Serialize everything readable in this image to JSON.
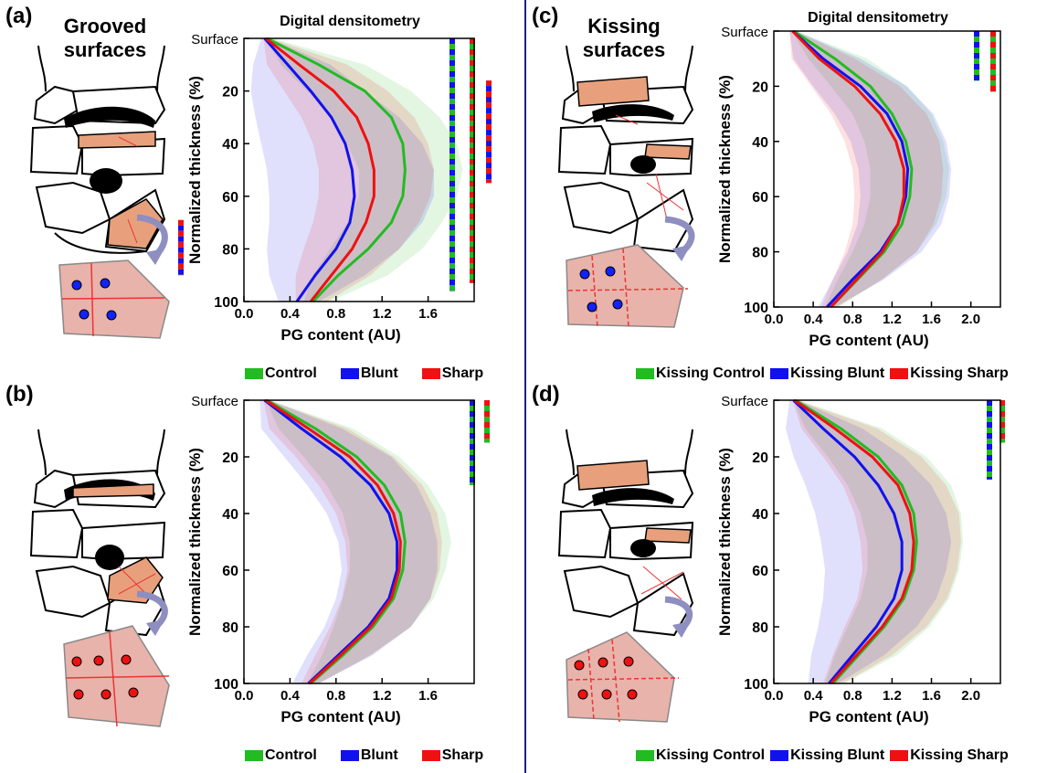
{
  "panels": {
    "a": {
      "letter": "(a)",
      "group_title": "Grooved surfaces"
    },
    "b": {
      "letter": "(b)"
    },
    "c": {
      "letter": "(c)",
      "group_title": "Kissing surfaces"
    },
    "d": {
      "letter": "(d)"
    }
  },
  "legend_left": [
    {
      "label": "Control",
      "color": "#22bb22"
    },
    {
      "label": "Blunt",
      "color": "#1111ee"
    },
    {
      "label": "Sharp",
      "color": "#ee1111"
    }
  ],
  "legend_right": [
    {
      "label": "Kissing Control",
      "color": "#22bb22"
    },
    {
      "label": "Kissing Blunt",
      "color": "#1111ee"
    },
    {
      "label": "Kissing Sharp",
      "color": "#ee1111"
    }
  ],
  "colors": {
    "control": "#22bb22",
    "blunt": "#1111ee",
    "sharp": "#ee1111",
    "divider": "#1a237e"
  },
  "chart_data": [
    {
      "panel": "a",
      "type": "line",
      "title": "Digital densitometry",
      "xlabel": "PG content (AU)",
      "ylabel": "Normalized thickness (%)",
      "xlim": [
        0,
        2.0
      ],
      "ylim": [
        0,
        100
      ],
      "y_inverted": true,
      "xticks": [
        0.0,
        0.4,
        0.8,
        1.2,
        1.6
      ],
      "xtick_labels": [
        "0.0",
        "0.4",
        "0.8",
        "1.2",
        "1.6"
      ],
      "yticks": [
        0,
        20,
        40,
        60,
        80,
        100
      ],
      "ytick_labels": [
        "Surface",
        "20",
        "40",
        "60",
        "80",
        "100"
      ],
      "y": [
        0,
        10,
        20,
        30,
        40,
        50,
        60,
        70,
        80,
        90,
        100
      ],
      "series": [
        {
          "name": "Control",
          "color": "#22bb22",
          "x": [
            0.2,
            0.65,
            1.05,
            1.28,
            1.38,
            1.4,
            1.38,
            1.28,
            1.08,
            0.82,
            0.6
          ],
          "lower": [
            0.2,
            0.32,
            0.55,
            0.75,
            0.9,
            1.0,
            1.0,
            0.9,
            0.75,
            0.6,
            0.52
          ],
          "upper": [
            0.25,
            1.05,
            1.45,
            1.7,
            1.85,
            1.9,
            1.85,
            1.72,
            1.55,
            1.25,
            0.75
          ]
        },
        {
          "name": "Blunt",
          "color": "#1111ee",
          "x": [
            0.18,
            0.38,
            0.58,
            0.76,
            0.88,
            0.94,
            0.96,
            0.92,
            0.8,
            0.62,
            0.46
          ],
          "lower": [
            0.15,
            0.08,
            0.06,
            0.1,
            0.15,
            0.2,
            0.22,
            0.22,
            0.2,
            0.22,
            0.3
          ],
          "upper": [
            0.22,
            0.75,
            1.05,
            1.35,
            1.55,
            1.65,
            1.65,
            1.55,
            1.35,
            1.05,
            0.65
          ]
        },
        {
          "name": "Sharp",
          "color": "#ee1111",
          "x": [
            0.19,
            0.48,
            0.78,
            0.98,
            1.08,
            1.13,
            1.13,
            1.06,
            0.94,
            0.76,
            0.58
          ],
          "lower": [
            0.17,
            0.2,
            0.35,
            0.5,
            0.6,
            0.65,
            0.65,
            0.6,
            0.52,
            0.45,
            0.45
          ],
          "upper": [
            0.23,
            0.9,
            1.25,
            1.48,
            1.6,
            1.65,
            1.62,
            1.52,
            1.35,
            1.1,
            0.72
          ]
        }
      ],
      "significance_bars": [
        {
          "colors": [
            "#1111ee",
            "#22bb22"
          ],
          "y_start": 0,
          "y_end": 96
        },
        {
          "colors": [
            "#ee1111",
            "#22bb22"
          ],
          "y_start": 0,
          "y_end": 93
        },
        {
          "colors": [
            "#ee1111",
            "#1111ee"
          ],
          "y_start": 16,
          "y_end": 55
        },
        {
          "colors": [
            "#ee1111",
            "#1111ee"
          ],
          "y_start": 69,
          "y_end": 90
        }
      ]
    },
    {
      "panel": "b",
      "type": "line",
      "title": "",
      "xlabel": "PG content (AU)",
      "ylabel": "Normalized thickness (%)",
      "xlim": [
        0,
        2.0
      ],
      "ylim": [
        0,
        100
      ],
      "y_inverted": true,
      "xticks": [
        0.0,
        0.4,
        0.8,
        1.2,
        1.6
      ],
      "xtick_labels": [
        "0.0",
        "0.4",
        "0.8",
        "1.2",
        "1.6"
      ],
      "yticks": [
        0,
        20,
        40,
        60,
        80,
        100
      ],
      "ytick_labels": [
        "Surface",
        "20",
        "40",
        "60",
        "80",
        "100"
      ],
      "y": [
        0,
        10,
        20,
        30,
        40,
        50,
        60,
        70,
        80,
        90,
        100
      ],
      "series": [
        {
          "name": "Control",
          "color": "#22bb22",
          "x": [
            0.2,
            0.62,
            0.98,
            1.22,
            1.36,
            1.4,
            1.38,
            1.3,
            1.12,
            0.86,
            0.58
          ],
          "lower": [
            0.19,
            0.3,
            0.52,
            0.72,
            0.86,
            0.92,
            0.92,
            0.86,
            0.78,
            0.68,
            0.55
          ],
          "upper": [
            0.22,
            0.95,
            1.35,
            1.6,
            1.75,
            1.8,
            1.75,
            1.65,
            1.45,
            1.1,
            0.65
          ]
        },
        {
          "name": "Blunt",
          "color": "#1111ee",
          "x": [
            0.18,
            0.5,
            0.84,
            1.1,
            1.26,
            1.33,
            1.33,
            1.26,
            1.08,
            0.82,
            0.56
          ],
          "lower": [
            0.14,
            0.15,
            0.35,
            0.55,
            0.72,
            0.82,
            0.85,
            0.8,
            0.7,
            0.55,
            0.42
          ],
          "upper": [
            0.22,
            0.85,
            1.28,
            1.5,
            1.62,
            1.68,
            1.68,
            1.62,
            1.45,
            1.12,
            0.65
          ]
        },
        {
          "name": "Sharp",
          "color": "#ee1111",
          "x": [
            0.19,
            0.56,
            0.92,
            1.16,
            1.3,
            1.36,
            1.35,
            1.28,
            1.1,
            0.84,
            0.57
          ],
          "lower": [
            0.17,
            0.22,
            0.45,
            0.65,
            0.8,
            0.88,
            0.9,
            0.85,
            0.75,
            0.62,
            0.5
          ],
          "upper": [
            0.22,
            0.9,
            1.3,
            1.55,
            1.68,
            1.72,
            1.7,
            1.62,
            1.45,
            1.1,
            0.65
          ]
        }
      ],
      "significance_bars": [
        {
          "colors": [
            "#1111ee",
            "#22bb22"
          ],
          "y_start": 0,
          "y_end": 30
        },
        {
          "colors": [
            "#ee1111",
            "#22bb22"
          ],
          "y_start": 0,
          "y_end": 15
        }
      ]
    },
    {
      "panel": "c",
      "type": "line",
      "title": "Digital densitometry",
      "xlabel": "PG content (AU)",
      "ylabel": "Normalized thickness (%)",
      "xlim": [
        0,
        2.3
      ],
      "ylim": [
        0,
        100
      ],
      "y_inverted": true,
      "xticks": [
        0.0,
        0.4,
        0.8,
        1.2,
        1.6,
        2.0
      ],
      "xtick_labels": [
        "0.0",
        "0.4",
        "0.8",
        "1.2",
        "1.6",
        "2.0"
      ],
      "yticks": [
        0,
        20,
        40,
        60,
        80,
        100
      ],
      "ytick_labels": [
        "Surface",
        "20",
        "40",
        "60",
        "80",
        "100"
      ],
      "y": [
        0,
        10,
        20,
        30,
        40,
        50,
        60,
        70,
        80,
        90,
        100
      ],
      "series": [
        {
          "name": "Kissing Control",
          "color": "#22bb22",
          "x": [
            0.2,
            0.62,
            0.98,
            1.2,
            1.34,
            1.4,
            1.38,
            1.3,
            1.12,
            0.85,
            0.58
          ],
          "lower": [
            0.18,
            0.35,
            0.58,
            0.8,
            0.92,
            0.98,
            0.98,
            0.92,
            0.8,
            0.65,
            0.52
          ],
          "upper": [
            0.23,
            0.95,
            1.35,
            1.6,
            1.72,
            1.78,
            1.75,
            1.65,
            1.45,
            1.1,
            0.65
          ]
        },
        {
          "name": "Kissing Blunt",
          "color": "#1111ee",
          "x": [
            0.19,
            0.5,
            0.88,
            1.15,
            1.3,
            1.36,
            1.34,
            1.26,
            1.08,
            0.8,
            0.54
          ],
          "lower": [
            0.16,
            0.2,
            0.4,
            0.62,
            0.78,
            0.86,
            0.88,
            0.85,
            0.75,
            0.6,
            0.45
          ],
          "upper": [
            0.22,
            0.88,
            1.35,
            1.62,
            1.75,
            1.8,
            1.78,
            1.7,
            1.5,
            1.12,
            0.62
          ]
        },
        {
          "name": "Kissing Sharp",
          "color": "#ee1111",
          "x": [
            0.19,
            0.46,
            0.82,
            1.08,
            1.24,
            1.32,
            1.32,
            1.26,
            1.1,
            0.84,
            0.58
          ],
          "lower": [
            0.16,
            0.18,
            0.38,
            0.58,
            0.72,
            0.8,
            0.82,
            0.8,
            0.72,
            0.6,
            0.48
          ],
          "upper": [
            0.22,
            0.82,
            1.28,
            1.55,
            1.68,
            1.72,
            1.7,
            1.62,
            1.45,
            1.1,
            0.65
          ]
        }
      ],
      "significance_bars": [
        {
          "colors": [
            "#1111ee",
            "#22bb22"
          ],
          "y_start": 0,
          "y_end": 18
        },
        {
          "colors": [
            "#ee1111",
            "#22bb22"
          ],
          "y_start": 0,
          "y_end": 22
        }
      ]
    },
    {
      "panel": "d",
      "type": "line",
      "title": "",
      "xlabel": "PG content (AU)",
      "ylabel": "Normalized thickness (%)",
      "xlim": [
        0,
        2.3
      ],
      "ylim": [
        0,
        100
      ],
      "y_inverted": true,
      "xticks": [
        0.0,
        0.4,
        0.8,
        1.2,
        1.6,
        2.0
      ],
      "xtick_labels": [
        "0.0",
        "0.4",
        "0.8",
        "1.2",
        "1.6",
        "2.0"
      ],
      "yticks": [
        0,
        20,
        40,
        60,
        80,
        100
      ],
      "ytick_labels": [
        "Surface",
        "20",
        "40",
        "60",
        "80",
        "100"
      ],
      "y": [
        0,
        10,
        20,
        30,
        40,
        50,
        60,
        70,
        80,
        90,
        100
      ],
      "series": [
        {
          "name": "Kissing Control",
          "color": "#22bb22",
          "x": [
            0.22,
            0.68,
            1.06,
            1.3,
            1.42,
            1.45,
            1.42,
            1.32,
            1.12,
            0.86,
            0.6
          ],
          "lower": [
            0.2,
            0.32,
            0.55,
            0.75,
            0.88,
            0.95,
            0.95,
            0.88,
            0.75,
            0.62,
            0.52
          ],
          "upper": [
            0.25,
            1.1,
            1.55,
            1.8,
            1.9,
            1.92,
            1.88,
            1.78,
            1.58,
            1.25,
            0.72
          ]
        },
        {
          "name": "Kissing Blunt",
          "color": "#1111ee",
          "x": [
            0.2,
            0.5,
            0.82,
            1.06,
            1.22,
            1.3,
            1.3,
            1.22,
            1.04,
            0.8,
            0.56
          ],
          "lower": [
            0.16,
            0.12,
            0.2,
            0.32,
            0.42,
            0.48,
            0.52,
            0.5,
            0.45,
            0.38,
            0.35
          ],
          "upper": [
            0.24,
            0.9,
            1.32,
            1.6,
            1.75,
            1.8,
            1.75,
            1.65,
            1.45,
            1.12,
            0.65
          ]
        },
        {
          "name": "Kissing Sharp",
          "color": "#ee1111",
          "x": [
            0.21,
            0.62,
            1.0,
            1.26,
            1.38,
            1.42,
            1.4,
            1.3,
            1.1,
            0.84,
            0.58
          ],
          "lower": [
            0.19,
            0.28,
            0.5,
            0.7,
            0.82,
            0.88,
            0.9,
            0.85,
            0.72,
            0.6,
            0.5
          ],
          "upper": [
            0.24,
            1.05,
            1.5,
            1.75,
            1.88,
            1.9,
            1.86,
            1.76,
            1.55,
            1.2,
            0.7
          ]
        }
      ],
      "significance_bars": [
        {
          "colors": [
            "#1111ee",
            "#22bb22"
          ],
          "y_start": 0,
          "y_end": 28
        },
        {
          "colors": [
            "#ee1111",
            "#22bb22"
          ],
          "y_start": 0,
          "y_end": 15
        }
      ]
    }
  ]
}
